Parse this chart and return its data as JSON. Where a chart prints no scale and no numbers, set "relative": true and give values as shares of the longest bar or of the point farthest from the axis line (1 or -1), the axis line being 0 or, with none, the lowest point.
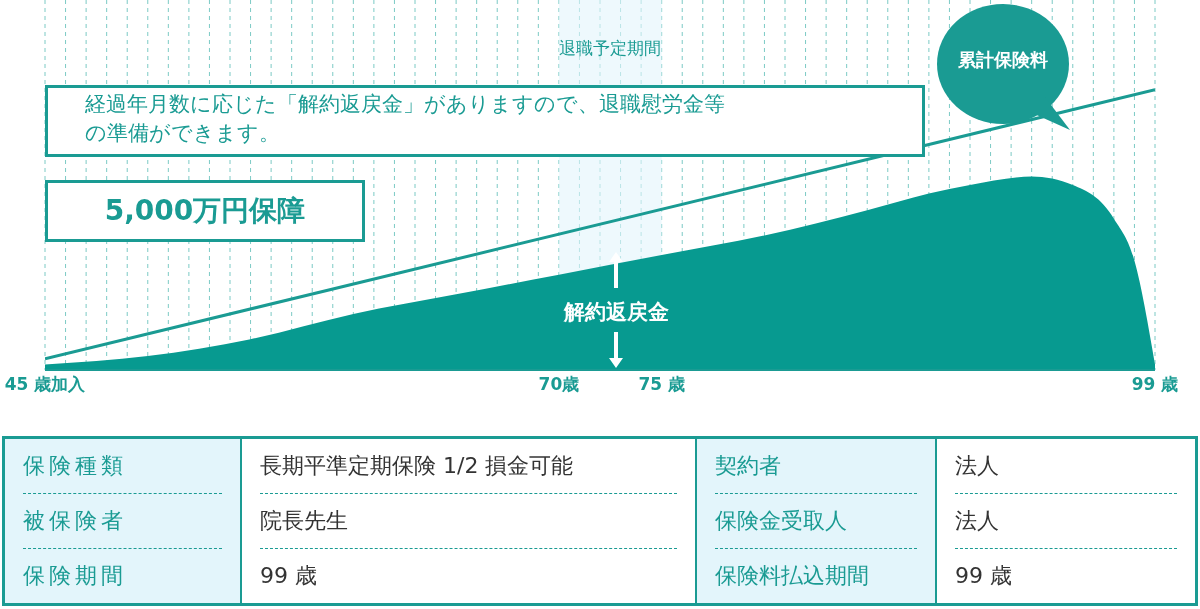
{
  "chart_data": {
    "type": "area",
    "relative": true,
    "xlim": [
      45,
      99
    ],
    "xticks": [
      {
        "value": 45,
        "label": "45 歳加入"
      },
      {
        "value": 46,
        "label": null
      },
      {
        "value": 47,
        "label": null
      },
      {
        "value": 48,
        "label": null
      },
      {
        "value": 49,
        "label": null
      },
      {
        "value": 50,
        "label": null
      },
      {
        "value": 51,
        "label": null
      },
      {
        "value": 52,
        "label": null
      },
      {
        "value": 53,
        "label": null
      },
      {
        "value": 54,
        "label": null
      },
      {
        "value": 55,
        "label": null
      },
      {
        "value": 56,
        "label": null
      },
      {
        "value": 57,
        "label": null
      },
      {
        "value": 58,
        "label": null
      },
      {
        "value": 59,
        "label": null
      },
      {
        "value": 60,
        "label": null
      },
      {
        "value": 61,
        "label": null
      },
      {
        "value": 62,
        "label": null
      },
      {
        "value": 63,
        "label": null
      },
      {
        "value": 64,
        "label": null
      },
      {
        "value": 65,
        "label": null
      },
      {
        "value": 66,
        "label": null
      },
      {
        "value": 67,
        "label": null
      },
      {
        "value": 68,
        "label": null
      },
      {
        "value": 69,
        "label": null
      },
      {
        "value": 70,
        "label": "70歳"
      },
      {
        "value": 71,
        "label": null
      },
      {
        "value": 72,
        "label": null
      },
      {
        "value": 73,
        "label": null
      },
      {
        "value": 74,
        "label": null
      },
      {
        "value": 75,
        "label": "75 歳"
      },
      {
        "value": 76,
        "label": null
      },
      {
        "value": 77,
        "label": null
      },
      {
        "value": 78,
        "label": null
      },
      {
        "value": 79,
        "label": null
      },
      {
        "value": 80,
        "label": null
      },
      {
        "value": 81,
        "label": null
      },
      {
        "value": 82,
        "label": null
      },
      {
        "value": 83,
        "label": null
      },
      {
        "value": 84,
        "label": null
      },
      {
        "value": 85,
        "label": null
      },
      {
        "value": 86,
        "label": null
      },
      {
        "value": 87,
        "label": null
      },
      {
        "value": 88,
        "label": null
      },
      {
        "value": 89,
        "label": null
      },
      {
        "value": 90,
        "label": null
      },
      {
        "value": 91,
        "label": null
      },
      {
        "value": 92,
        "label": null
      },
      {
        "value": 93,
        "label": null
      },
      {
        "value": 94,
        "label": null
      },
      {
        "value": 95,
        "label": null
      },
      {
        "value": 96,
        "label": null
      },
      {
        "value": 97,
        "label": null
      },
      {
        "value": 98,
        "label": null
      },
      {
        "value": 99,
        "label": "99 歳"
      }
    ],
    "grid": "x",
    "legend": false,
    "bands": [
      {
        "axis": "x",
        "from": 70,
        "to": 75,
        "label": "退職予定期間",
        "color": "#e3f5fb"
      }
    ],
    "series": [
      {
        "name": "解約返戻金",
        "color": "#079a90",
        "x": [
          45,
          50,
          55,
          60,
          65,
          70,
          75,
          80,
          85,
          88,
          90,
          93,
          95,
          97,
          98,
          99
        ],
        "values": [
          0.02,
          0.05,
          0.11,
          0.2,
          0.27,
          0.34,
          0.41,
          0.48,
          0.57,
          0.63,
          0.66,
          0.69,
          0.66,
          0.54,
          0.39,
          0.02
        ]
      },
      {
        "name": "累計保険料",
        "type": "line",
        "color": "#1a9b93",
        "x": [
          45,
          99
        ],
        "values": [
          0.04,
          1
        ]
      }
    ],
    "annotations": [
      "経過年月数に応じた「解約返戻金」がありますので、退職慰労金等の準備ができます。",
      "5,000万円保障",
      "保険種類",
      "長期平準定期保険 1/2 損金可能",
      "契約者",
      "法人",
      "被保険者",
      "院長先生",
      "保険金受取人",
      "法人",
      "保険期間",
      "99 歳",
      "保険料払込期間",
      "99 歳"
    ]
  }
}
